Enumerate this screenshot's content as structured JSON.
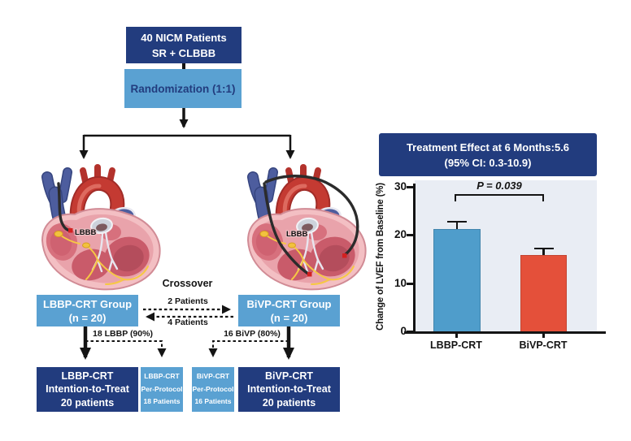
{
  "flowchart": {
    "top_box": {
      "line1": "40 NICM Patients",
      "line2": "SR + CLBBB"
    },
    "randomization_box": "Randomization (1:1)",
    "left_heart_label": "LBBB",
    "right_heart_label": "LBBB",
    "left_group": {
      "line1": "LBBP-CRT Group",
      "line2": "(n = 20)"
    },
    "right_group": {
      "line1": "BiVP-CRT Group",
      "line2": "(n = 20)"
    },
    "crossover": {
      "title": "Crossover",
      "to_right": "2 Patients",
      "to_left": "4 Patients"
    },
    "left_branch_label": "18 LBBP (90%)",
    "right_branch_label": "16 BiVP (80%)",
    "itt_left": {
      "line1": "LBBP-CRT",
      "line2": "Intention-to-Treat",
      "line3": "20 patients"
    },
    "pp_left": {
      "line1": "LBBP-CRT",
      "line2": "Per-Protocol",
      "line3": "18 Patients"
    },
    "pp_right": {
      "line1": "BiVP-CRT",
      "line2": "Per-Protocol",
      "line3": "16 Patients"
    },
    "itt_right": {
      "line1": "BiVP-CRT",
      "line2": "Intention-to-Treat",
      "line3": "20 patients"
    }
  },
  "chart": {
    "header_line1": "Treatment Effect at 6 Months:5.6",
    "header_line2": "(95% CI: 0.3-10.9)"
  },
  "chart_data": {
    "type": "bar",
    "title": "Treatment Effect at 6 Months:5.6 (95% CI: 0.3-10.9)",
    "categories": [
      "LBBP-CRT",
      "BiVP-CRT"
    ],
    "values": [
      21.3,
      15.9
    ],
    "error_upper": [
      23.0,
      17.5
    ],
    "bar_colors": [
      "#4f9dcb",
      "#e4503a"
    ],
    "ylabel": "Change of LVEF from Baseline (%)",
    "xlabel": "",
    "yticks": [
      0,
      10,
      20,
      30
    ],
    "ylim": [
      0,
      30
    ],
    "grid": false,
    "legend": "none",
    "annotation": "P = 0.039"
  },
  "colors": {
    "navy": "#223c7e",
    "light_blue": "#5aa1d2",
    "plot_bg": "#e9edf4",
    "bar_blue": "#4f9dcb",
    "bar_red": "#e4503a"
  }
}
